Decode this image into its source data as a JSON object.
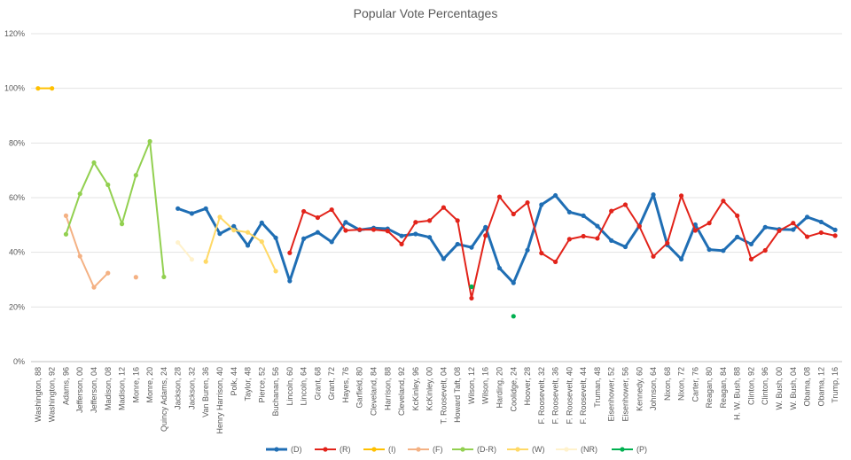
{
  "chart_data": {
    "type": "line",
    "title": "Popular Vote Percentages",
    "xlabel": "",
    "ylabel": "",
    "ylim": [
      0,
      120
    ],
    "yticks": [
      0,
      20,
      40,
      60,
      80,
      100,
      120
    ],
    "ytick_labels": [
      "0%",
      "20%",
      "40%",
      "60%",
      "80%",
      "100%",
      "120%"
    ],
    "grid": true,
    "legend_position": "bottom",
    "categories": [
      "Washington, 88",
      "Washington, 92",
      "Adams, 96",
      "Jefferson, 00",
      "Jefferson, 04",
      "Madison, 08",
      "Madison, 12",
      "Monre, 16",
      "Monre, 20",
      "Quincy Adams, 24",
      "Jackson, 28",
      "Jackson, 32",
      "Van Buren, 36",
      "Henry Harrison, 40",
      "Polk, 44",
      "Taylor, 48",
      "Pierce, 52",
      "Buchanan, 56",
      "Lincoln, 60",
      "Lincoln, 64",
      "Grant, 68",
      "Grant, 72",
      "Hayes, 76",
      "Garfield, 80",
      "Cleveland, 84",
      "Harrison, 88",
      "Cleveland, 92",
      "KcKinley, 96",
      "KcKinley, 00",
      "T. Roosevelt, 04",
      "Howard Taft, 08",
      "Wilson, 12",
      "Wilson, 16",
      "Harding, 20",
      "Coolidge, 24",
      "Hoover, 28",
      "F. Roosevelt, 32",
      "F. Roosevelt, 36",
      "F. Roosevelt, 40",
      "F. Roosevelt, 44",
      "Truman, 48",
      "Eisenhower, 52",
      "Eisenhower, 56",
      "Kennedy, 60",
      "Johnson, 64",
      "Nixon, 68",
      "Nixon, 72",
      "Carter, 76",
      "Reagan, 80",
      "Reagan, 84",
      "H. W. Bush, 88",
      "Clinton, 92",
      "Clinton, 96",
      "W. Bush, 00",
      "W. Bush, 04",
      "Obama, 08",
      "Obama, 12",
      "Trump, 16"
    ],
    "series": [
      {
        "name": "(D)",
        "color": "#1F6EB4",
        "width": 3,
        "values": [
          null,
          null,
          null,
          null,
          null,
          null,
          null,
          null,
          null,
          null,
          56,
          54.2,
          56,
          46.8,
          49.5,
          42.5,
          50.8,
          45.3,
          29.5,
          45,
          47.3,
          43.8,
          51,
          48.2,
          48.9,
          48.6,
          46,
          46.7,
          45.5,
          37.6,
          43,
          41.8,
          49.2,
          34.2,
          28.8,
          40.8,
          57.4,
          60.8,
          54.7,
          53.4,
          49.6,
          44.3,
          42,
          49.7,
          61.1,
          42.7,
          37.5,
          50.1,
          41,
          40.6,
          45.6,
          43,
          49.2,
          48.4,
          48.3,
          52.9,
          51.1,
          48.2
        ]
      },
      {
        "name": "(R)",
        "color": "#E2231A",
        "width": 2,
        "values": [
          null,
          null,
          null,
          null,
          null,
          null,
          null,
          null,
          null,
          null,
          null,
          null,
          null,
          null,
          null,
          null,
          null,
          null,
          39.8,
          55,
          52.7,
          55.6,
          48,
          48.3,
          48.3,
          47.8,
          43,
          51,
          51.6,
          56.4,
          51.6,
          23.2,
          46.1,
          60.3,
          54,
          58.2,
          39.7,
          36.5,
          44.8,
          45.9,
          45.1,
          55.1,
          57.4,
          49.5,
          38.5,
          43.4,
          60.7,
          48,
          50.7,
          58.8,
          53.4,
          37.5,
          40.7,
          47.9,
          50.7,
          45.7,
          47.2,
          46.1
        ]
      },
      {
        "name": "(I)",
        "color": "#FFC000",
        "width": 2,
        "values": [
          100,
          100,
          null,
          null,
          null,
          null,
          null,
          null,
          null,
          null,
          null,
          null,
          null,
          null,
          null,
          null,
          null,
          null,
          null,
          null,
          null,
          null,
          null,
          null,
          null,
          null,
          null,
          null,
          null,
          null,
          null,
          null,
          null,
          null,
          null,
          null,
          null,
          null,
          null,
          null,
          null,
          null,
          null,
          null,
          null,
          null,
          null,
          null,
          null,
          null,
          null,
          null,
          null,
          null,
          null,
          null,
          null,
          null
        ]
      },
      {
        "name": "(F)",
        "color": "#F4B183",
        "width": 2,
        "values": [
          null,
          null,
          53.4,
          38.6,
          27.2,
          32.4,
          null,
          30.9,
          null,
          null,
          null,
          null,
          null,
          null,
          null,
          null,
          null,
          null,
          null,
          null,
          null,
          null,
          null,
          null,
          null,
          null,
          null,
          null,
          null,
          null,
          null,
          null,
          null,
          null,
          null,
          null,
          null,
          null,
          null,
          null,
          null,
          null,
          null,
          null,
          null,
          null,
          null,
          null,
          null,
          null,
          null,
          null,
          null,
          null,
          null,
          null,
          null,
          null
        ]
      },
      {
        "name": "(D-R)",
        "color": "#92D050",
        "width": 2,
        "values": [
          null,
          null,
          46.6,
          61.4,
          72.8,
          64.7,
          50.4,
          68.2,
          80.6,
          31,
          null,
          null,
          null,
          null,
          null,
          null,
          null,
          null,
          null,
          null,
          null,
          null,
          null,
          null,
          null,
          null,
          null,
          null,
          null,
          null,
          null,
          null,
          null,
          null,
          null,
          null,
          null,
          null,
          null,
          null,
          null,
          null,
          null,
          null,
          null,
          null,
          null,
          null,
          null,
          null,
          null,
          null,
          null,
          null,
          null,
          null,
          null,
          null
        ]
      },
      {
        "name": "(W)",
        "color": "#FFD966",
        "width": 2,
        "values": [
          null,
          null,
          null,
          null,
          null,
          null,
          null,
          null,
          null,
          null,
          null,
          null,
          36.6,
          52.9,
          48.1,
          47.3,
          43.9,
          33.1,
          null,
          null,
          null,
          null,
          null,
          null,
          null,
          null,
          null,
          null,
          null,
          null,
          null,
          null,
          null,
          null,
          null,
          null,
          null,
          null,
          null,
          null,
          null,
          null,
          null,
          null,
          null,
          null,
          null,
          null,
          null,
          null,
          null,
          null,
          null,
          null,
          null,
          null,
          null,
          null
        ]
      },
      {
        "name": "(NR)",
        "color": "#FFF2CC",
        "width": 2,
        "values": [
          null,
          null,
          null,
          null,
          null,
          null,
          null,
          null,
          null,
          null,
          43.6,
          37.4,
          null,
          null,
          null,
          null,
          null,
          null,
          null,
          null,
          null,
          null,
          null,
          null,
          null,
          null,
          null,
          null,
          null,
          null,
          null,
          null,
          null,
          null,
          null,
          null,
          null,
          null,
          null,
          null,
          null,
          null,
          null,
          null,
          null,
          null,
          null,
          null,
          null,
          null,
          null,
          null,
          null,
          null,
          null,
          null,
          null,
          null
        ]
      },
      {
        "name": "(P)",
        "color": "#00B050",
        "width": 2,
        "values": [
          null,
          null,
          null,
          null,
          null,
          null,
          null,
          null,
          null,
          null,
          null,
          null,
          null,
          null,
          null,
          null,
          null,
          null,
          null,
          null,
          null,
          null,
          null,
          null,
          null,
          null,
          null,
          null,
          null,
          null,
          null,
          27.4,
          null,
          null,
          16.6,
          null,
          null,
          null,
          null,
          null,
          null,
          null,
          null,
          null,
          null,
          null,
          null,
          null,
          null,
          null,
          null,
          null,
          null,
          null,
          null,
          null,
          null,
          null
        ]
      }
    ]
  }
}
